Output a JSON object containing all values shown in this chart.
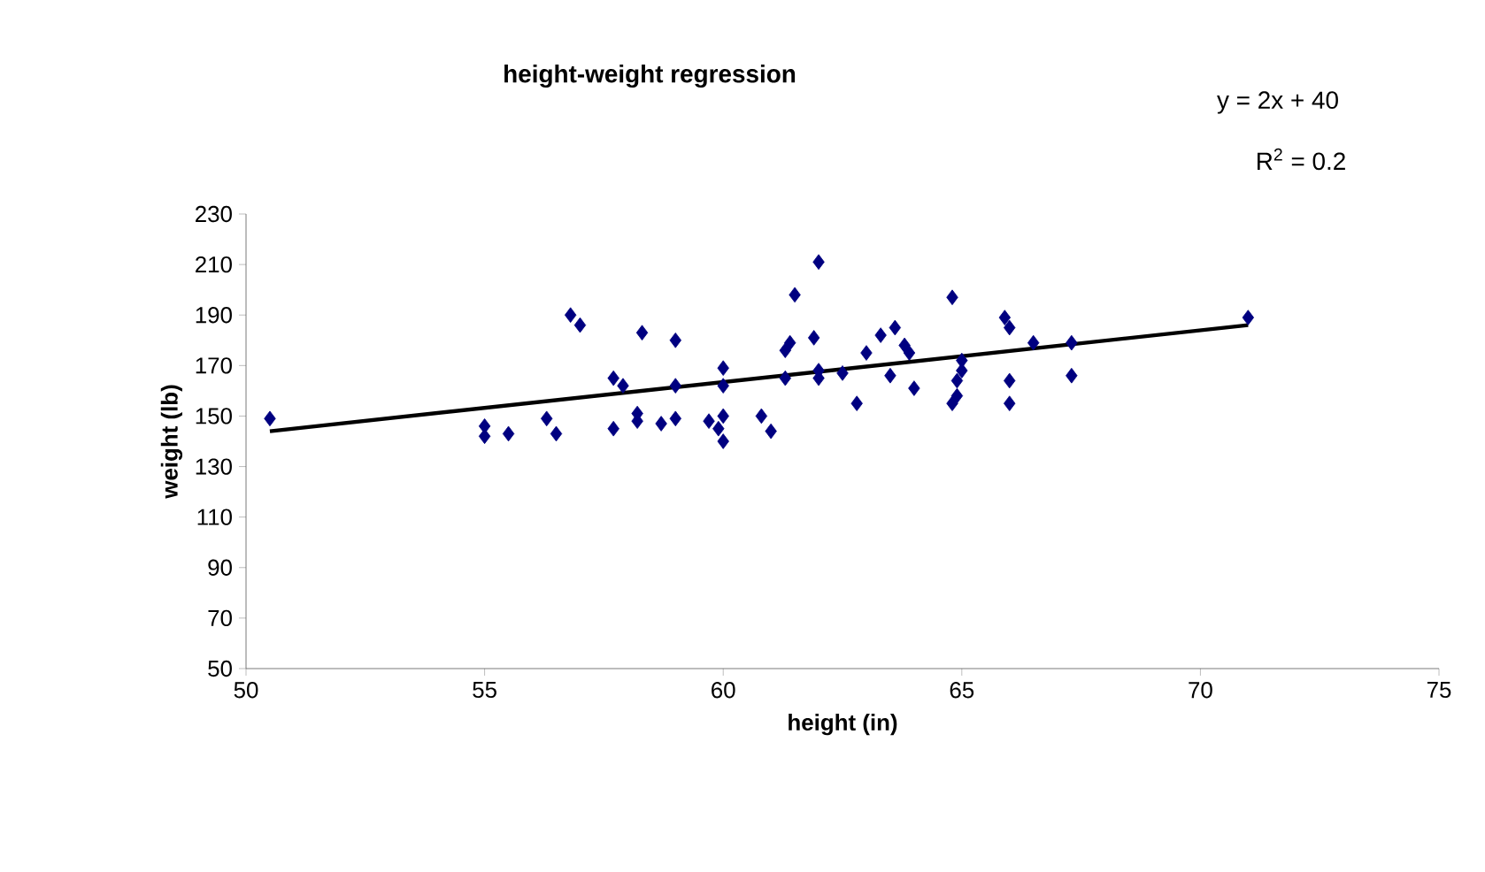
{
  "chart_data": {
    "type": "scatter",
    "title": "height-weight regression",
    "xlabel": "height (in)",
    "ylabel": "weight (lb)",
    "annotations": [
      "y = 2x + 40",
      "R$^{2}$ = 0.2"
    ],
    "xlim": [
      50,
      75
    ],
    "ylim": [
      50,
      230
    ],
    "xticks": [
      50,
      55,
      60,
      65,
      70,
      75
    ],
    "yticks": [
      50,
      70,
      90,
      110,
      130,
      150,
      170,
      190,
      210,
      230
    ],
    "series": [
      {
        "color": "#000080",
        "marker": "diamond",
        "x": [
          50.5,
          55,
          55,
          55.5,
          56.3,
          56.5,
          56.8,
          57,
          57.7,
          57.9,
          57.7,
          58.2,
          58.2,
          58.3,
          59,
          58.7,
          59,
          59,
          59.7,
          59.9,
          60,
          60,
          60,
          60,
          60.8,
          61,
          61.3,
          61.3,
          61.4,
          61.5,
          61.9,
          62,
          62,
          62,
          62.5,
          62.8,
          63,
          63.3,
          63.6,
          63.5,
          63.8,
          63.9,
          64,
          64.8,
          64.9,
          64.9,
          64.8,
          65,
          65,
          65.9,
          66,
          66,
          66,
          66.5,
          67.3,
          67.3,
          71
        ],
        "values": [
          149,
          146,
          142,
          143,
          149,
          143,
          190,
          186,
          165,
          162,
          145,
          151,
          148,
          183,
          180,
          147,
          149,
          162,
          148,
          145,
          140,
          150,
          162,
          169,
          150,
          144,
          165,
          176,
          179,
          198,
          181,
          211,
          168,
          165,
          167,
          155,
          175,
          182,
          185,
          166,
          178,
          175,
          161,
          197,
          164,
          158,
          155,
          172,
          168,
          189,
          185,
          164,
          155,
          179,
          179,
          166,
          189
        ]
      },
      {
        "type": "line",
        "color": "#000000",
        "marker": "none",
        "x": [
          50.5,
          71
        ],
        "values": [
          144,
          186
        ]
      }
    ]
  }
}
